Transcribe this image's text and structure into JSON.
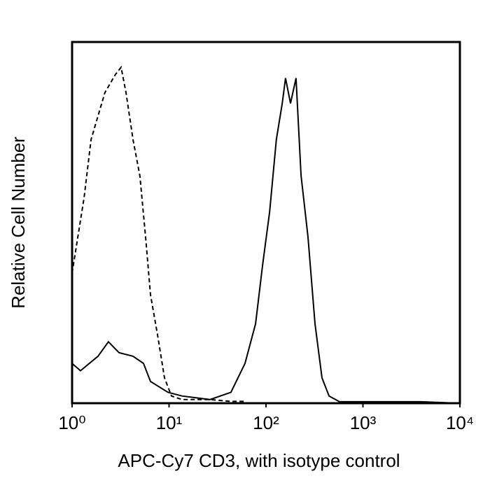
{
  "chart_data": {
    "type": "line",
    "xscale": "log",
    "xlabel": "APC-Cy7 CD3, with isotype control",
    "ylabel": "Relative Cell Number",
    "xlim": [
      1,
      10000
    ],
    "ylim": [
      0,
      100
    ],
    "xticks": [
      {
        "value": 1,
        "label": "10⁰"
      },
      {
        "value": 10,
        "label": "10¹"
      },
      {
        "value": 100,
        "label": "10²"
      },
      {
        "value": 1000,
        "label": "10³"
      },
      {
        "value": 10000,
        "label": "10⁴"
      }
    ],
    "grid": false,
    "series": [
      {
        "color": "#000000",
        "line_style": "dashed",
        "x": [
          1,
          1.33,
          1.57,
          2.18,
          2.8,
          3.2,
          3.6,
          4.25,
          5.0,
          5.73,
          6.44,
          7.6,
          8.97,
          10.6,
          13.6,
          26.4,
          43.5,
          60.7
        ],
        "values": [
          36,
          57,
          73,
          86,
          91,
          93,
          86,
          73,
          63,
          46,
          30,
          19,
          7,
          2,
          1,
          1,
          0.5,
          0.5
        ]
      },
      {
        "color": "#000000",
        "line_style": "solid",
        "x": [
          1,
          1.22,
          1.85,
          2.37,
          3.05,
          4.25,
          5.45,
          6.44,
          9.75,
          13.6,
          26.4,
          43.5,
          60.7,
          78,
          92,
          109,
          128,
          147,
          159,
          179,
          204,
          230,
          271,
          320,
          378,
          447,
          573,
          3875,
          10000
        ],
        "values": [
          11,
          9,
          13,
          17,
          14,
          13,
          11,
          6,
          3,
          2,
          1,
          3,
          11,
          22,
          38,
          53,
          73,
          83,
          90,
          83,
          90,
          63,
          46,
          22,
          7,
          2,
          0.4,
          0.4,
          0
        ]
      }
    ]
  }
}
